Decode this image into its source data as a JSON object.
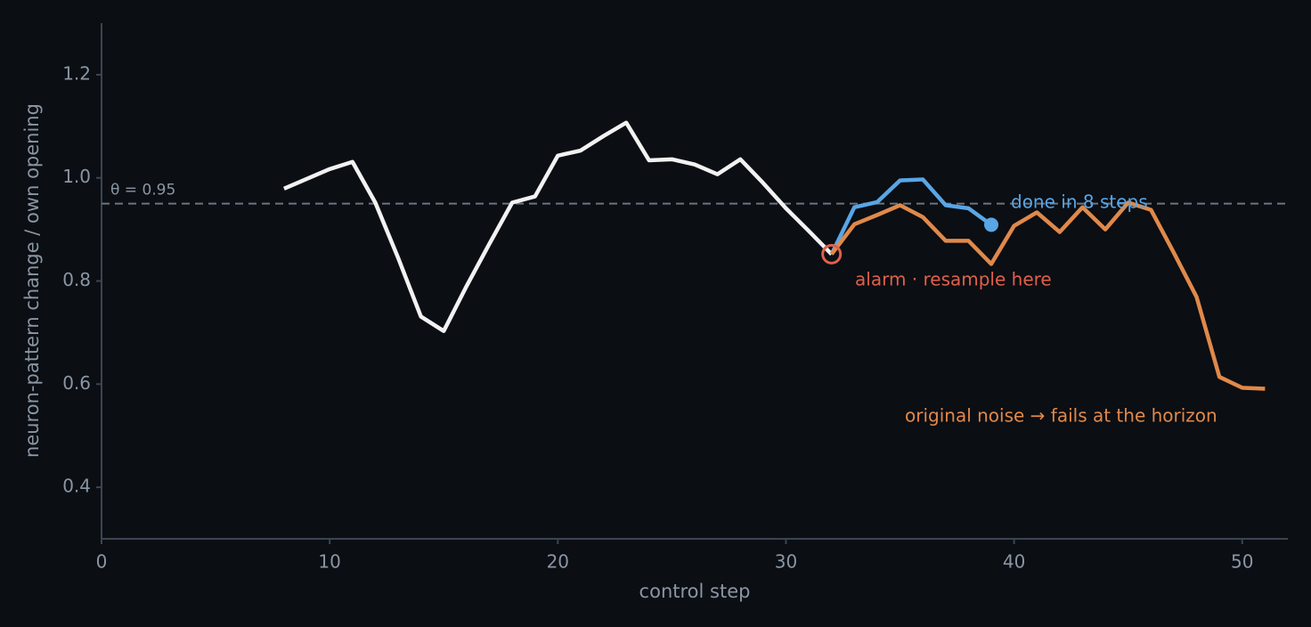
{
  "chart_data": {
    "type": "line",
    "xlabel": "control step",
    "ylabel": "neuron-pattern change / own opening",
    "xlim": [
      0,
      52
    ],
    "ylim": [
      0.3,
      1.3
    ],
    "xticks": [
      0,
      10,
      20,
      30,
      40,
      50
    ],
    "yticks": [
      0.4,
      0.6,
      0.8,
      {
        "value": 1,
        "label": "1.0"
      },
      1.2
    ],
    "grid": false,
    "threshold": 0.95,
    "threshold_label": "θ = 0.95",
    "series": [
      {
        "color": "#f2f2f2",
        "x": [
          8,
          9,
          10,
          11,
          12,
          13,
          14,
          15,
          16,
          17,
          18,
          19,
          20,
          21,
          22,
          23,
          24,
          25,
          26,
          27,
          28,
          29,
          30,
          31,
          32
        ],
        "values": [
          0.979,
          0.998,
          1.017,
          1.031,
          0.952,
          0.845,
          0.731,
          0.703,
          0.79,
          0.872,
          0.952,
          0.964,
          1.043,
          1.053,
          1.081,
          1.107,
          1.034,
          1.036,
          1.026,
          1.007,
          1.036,
          0.99,
          0.941,
          0.897,
          0.852
        ]
      },
      {
        "color": "#58a6e6",
        "x": [
          32,
          33,
          34,
          35,
          36,
          37,
          38,
          39
        ],
        "values": [
          0.852,
          0.943,
          0.953,
          0.995,
          0.997,
          0.947,
          0.941,
          0.909
        ]
      },
      {
        "color": "#e0894a",
        "x": [
          32,
          33,
          34,
          35,
          36,
          37,
          38,
          39,
          40,
          41,
          42,
          43,
          44,
          45,
          46,
          47,
          48,
          49,
          50,
          51
        ],
        "values": [
          0.852,
          0.91,
          0.928,
          0.947,
          0.924,
          0.878,
          0.878,
          0.833,
          0.907,
          0.933,
          0.895,
          0.943,
          0.9,
          0.952,
          0.938,
          0.855,
          0.769,
          0.614,
          0.593,
          0.591
        ]
      }
    ],
    "annotations": [
      "alarm · resample here",
      "done in 8 steps",
      "original noise → fails at the horizon"
    ]
  }
}
